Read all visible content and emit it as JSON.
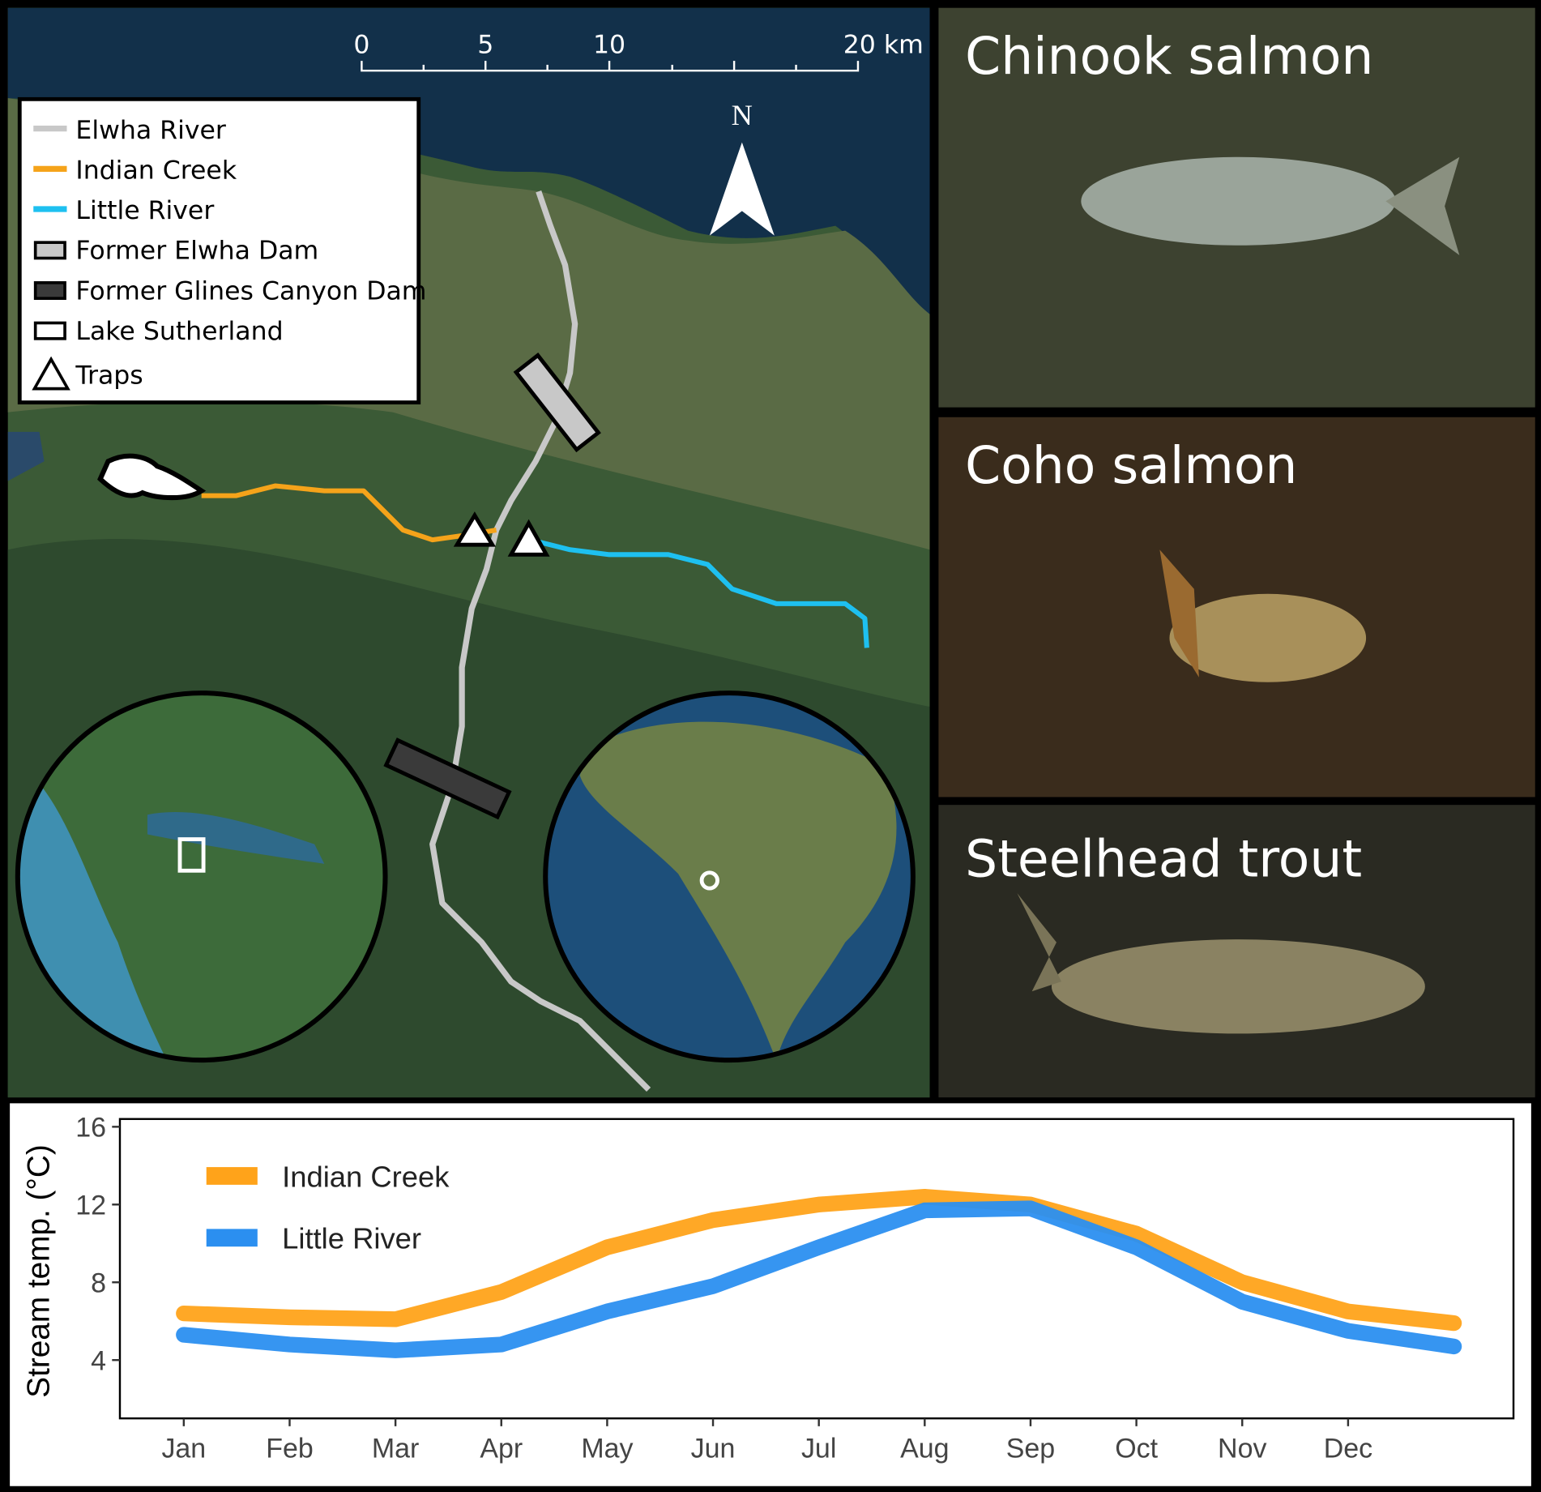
{
  "map": {
    "scale_labels": [
      "0",
      "5",
      "10",
      "20 km"
    ],
    "north": "N",
    "legend": [
      "Elwha River",
      "Indian Creek",
      "Little River",
      "Former Elwha Dam",
      "Former Glines Canyon Dam",
      "Lake Sutherland",
      "Traps"
    ]
  },
  "photos": [
    {
      "caption": "Chinook salmon"
    },
    {
      "caption": "Coho salmon"
    },
    {
      "caption": "Steelhead trout"
    }
  ],
  "chart_data": {
    "type": "line",
    "y_label": "Stream temp. (°C)",
    "categories": [
      "Jan",
      "Feb",
      "Mar",
      "Apr",
      "May",
      "Jun",
      "Jul",
      "Aug",
      "Sep",
      "Oct",
      "Nov",
      "Dec",
      null
    ],
    "series": [
      {
        "name": "Indian Creek",
        "color": "#ffa31a",
        "values": [
          6.4,
          6.2,
          6.1,
          7.5,
          9.8,
          11.2,
          12.0,
          12.4,
          12.0,
          10.5,
          8.0,
          6.5,
          5.9
        ]
      },
      {
        "name": "Little River",
        "color": "#2b8ff0",
        "values": [
          5.3,
          4.8,
          4.5,
          4.8,
          6.5,
          7.8,
          9.8,
          11.7,
          11.8,
          9.8,
          7.0,
          5.5,
          4.7
        ]
      }
    ],
    "ylim": [
      1,
      16.4
    ],
    "yticks": [
      4,
      8,
      12,
      16
    ],
    "legend": "top-left"
  }
}
